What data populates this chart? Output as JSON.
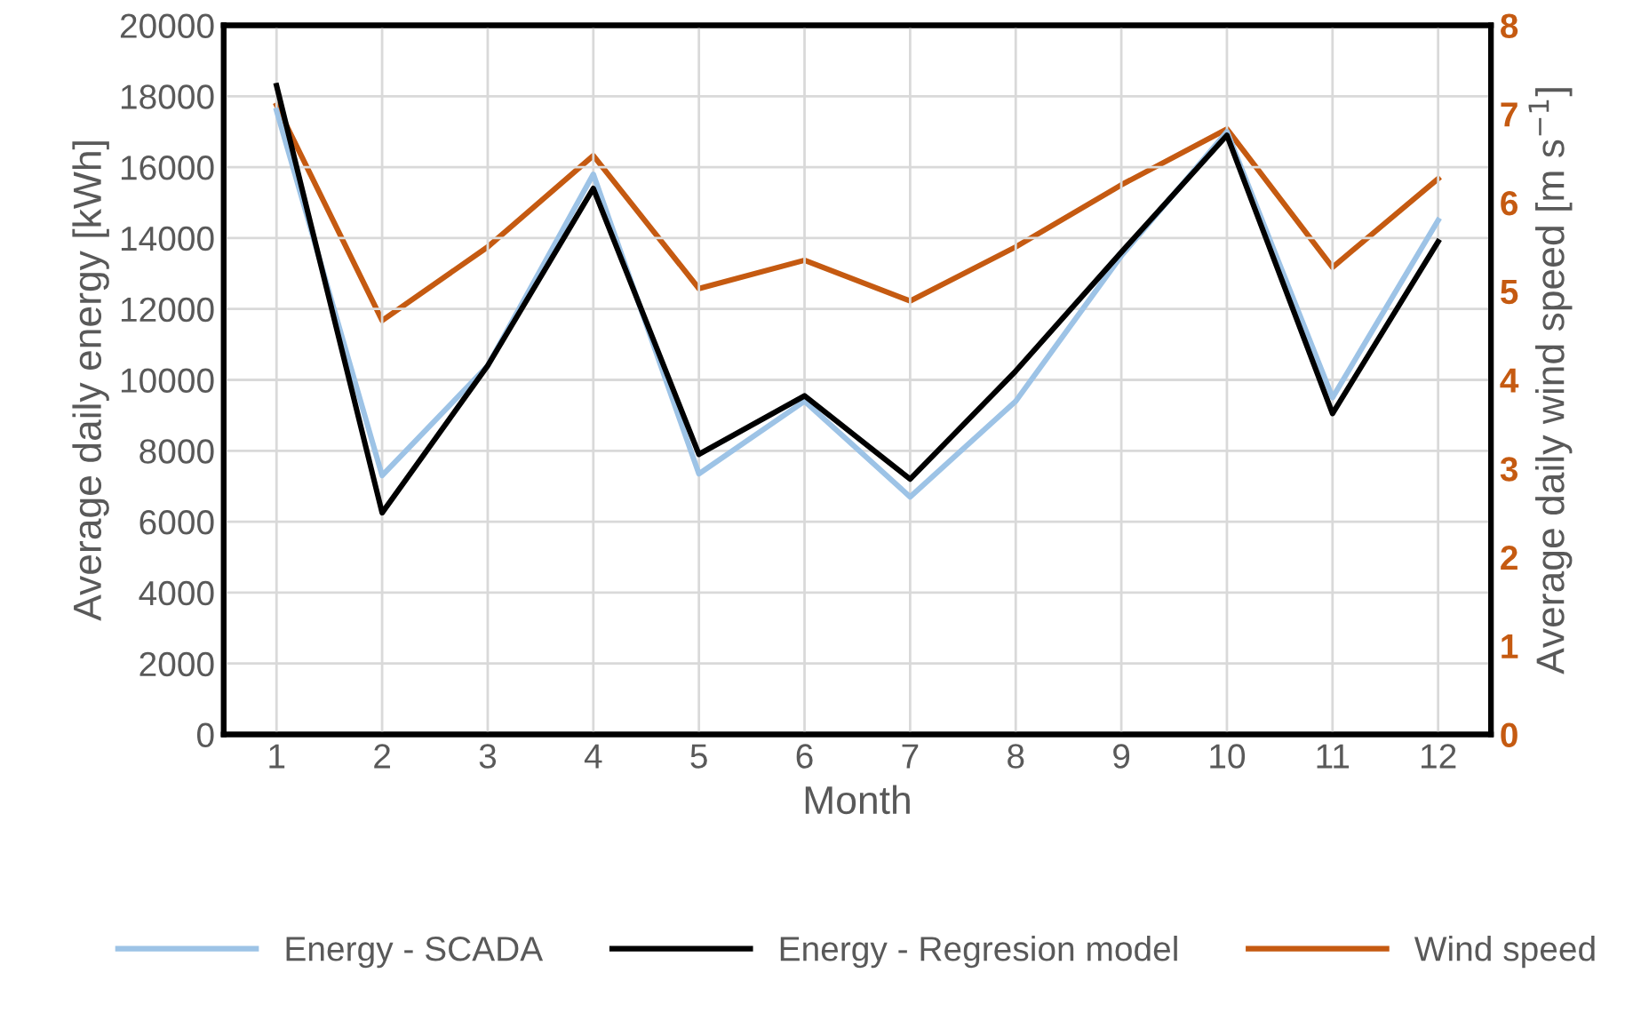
{
  "chart_data": {
    "type": "line",
    "xlabel": "Month",
    "ylabel": "Average daily energy [kWh]",
    "y2label": "Average daily wind speed [m s$^{−1}$]",
    "categories": [
      "1",
      "2",
      "3",
      "4",
      "5",
      "6",
      "7",
      "8",
      "9",
      "10",
      "11",
      "12"
    ],
    "series": [
      {
        "name": "Energy - SCADA",
        "color": "#9dc3e6",
        "values": [
          17600,
          7300,
          10400,
          15800,
          7350,
          9400,
          6700,
          9400,
          13500,
          17000,
          9500,
          14500
        ]
      },
      {
        "name": "Energy - Regresion model",
        "color": "#000000",
        "values": [
          18300,
          6250,
          10400,
          15400,
          7900,
          9550,
          7200,
          10250,
          13600,
          16900,
          9050,
          13900
        ]
      },
      {
        "name": "Wind speed",
        "color": "#c55a11",
        "axis": "y2",
        "values": [
          7.1,
          4.67,
          5.5,
          6.53,
          5.03,
          5.35,
          4.89,
          5.5,
          6.2,
          6.83,
          5.27,
          6.27
        ]
      }
    ],
    "ylim": [
      0,
      20000
    ],
    "yticks": [
      0,
      2000,
      4000,
      6000,
      8000,
      10000,
      12000,
      14000,
      16000,
      18000,
      20000
    ],
    "y2lim": [
      0,
      8
    ],
    "y2ticks": [
      0,
      1,
      2,
      3,
      4,
      5,
      6,
      7,
      8
    ],
    "grid": true,
    "legend": "bottom",
    "marker": "none",
    "line_style": "solid"
  }
}
